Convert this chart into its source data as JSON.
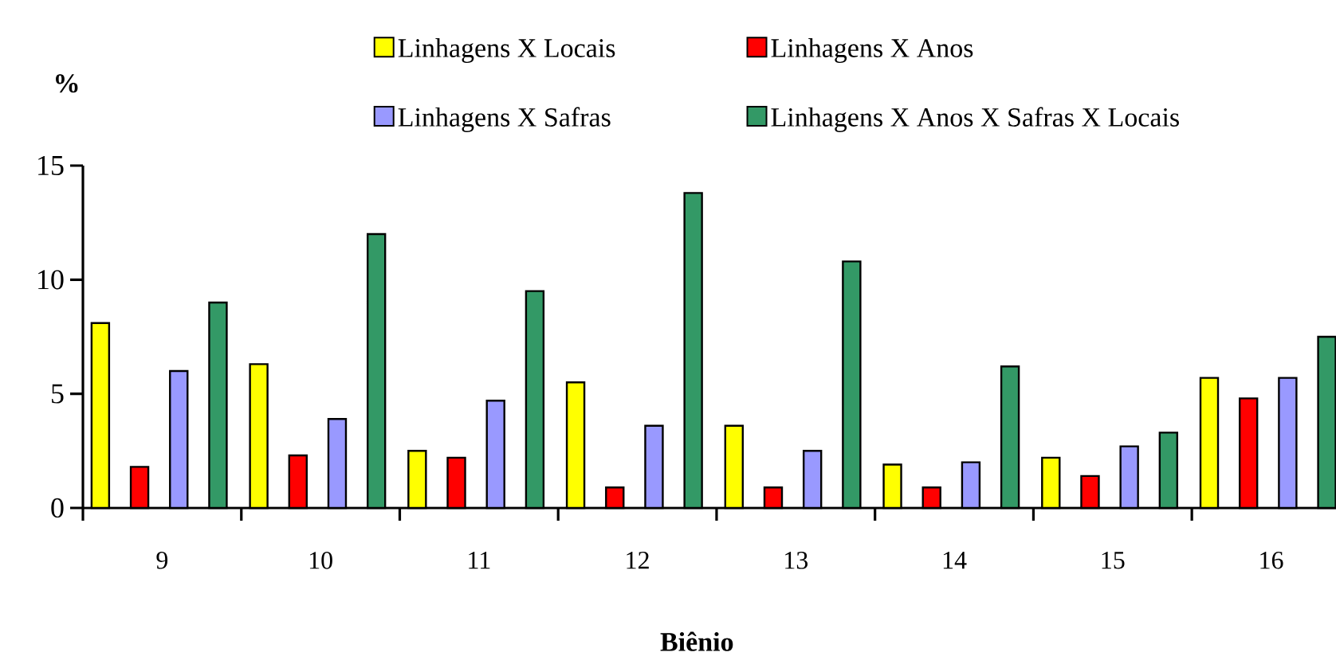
{
  "chart_data": {
    "type": "bar",
    "xlabel": "**Biênio**",
    "ylabel": "**%**",
    "categories": [
      "9",
      "10",
      "11",
      "12",
      "13",
      "14",
      "15",
      "16"
    ],
    "series": [
      {
        "name": "Linhagens X Locais",
        "color": "#ffff00",
        "values": [
          8.1,
          6.3,
          2.5,
          5.5,
          3.6,
          1.9,
          2.2,
          5.7
        ]
      },
      {
        "name": "Linhagens X Anos",
        "color": "#ff0000",
        "values": [
          1.8,
          2.3,
          2.2,
          0.9,
          0.9,
          0.9,
          1.4,
          4.8
        ]
      },
      {
        "name": "Linhagens X Safras",
        "color": "#9999ff",
        "values": [
          6.0,
          3.9,
          4.7,
          3.6,
          2.5,
          2.0,
          2.7,
          5.7
        ]
      },
      {
        "name": "Linhagens X Anos X Safras X Locais",
        "color": "#339966",
        "values": [
          9.0,
          12.0,
          9.5,
          13.8,
          10.8,
          6.2,
          3.3,
          7.5
        ]
      }
    ],
    "ylim": [
      0,
      15
    ],
    "yticks": [
      0,
      5,
      10,
      15
    ],
    "legend": "top"
  }
}
